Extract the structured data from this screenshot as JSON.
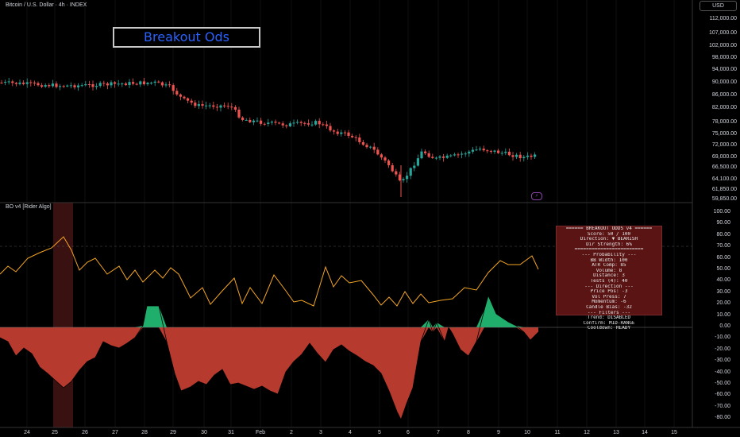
{
  "header": {
    "symbol": "Bitcoin / U.S. Dollar · 4h · INDEX",
    "currency_button": "USD",
    "overlay_title": "Breakout Ods"
  },
  "price_axis": [
    "112,000.00",
    "107,000.00",
    "102,000.00",
    "98,000.00",
    "94,000.00",
    "90,000.00",
    "86,000.00",
    "82,000.00",
    "78,000.00",
    "75,000.00",
    "72,000.00",
    "69,000.00",
    "66,500.00",
    "64,100.00",
    "61,850.00",
    "59,850.00"
  ],
  "indicator": {
    "label": "BO v4 [Rider Algo]",
    "axis": [
      "100.00",
      "90.00",
      "80.00",
      "70.00",
      "60.00",
      "50.00",
      "40.00",
      "30.00",
      "20.00",
      "10.00",
      "0.00",
      "-10.00",
      "-20.00",
      "-30.00",
      "-40.00",
      "-50.00",
      "-60.00",
      "-70.00",
      "-80.00"
    ],
    "info_panel": [
      "====== BREAKOUT ODDS v4 ======",
      "Score: 50 / 100",
      "Direction: ▼ BEARISH",
      "Dir Strength: 6%",
      "========================",
      "--- Probability ---",
      "BB Width: 100",
      "ATR Comp: 85",
      "Volume: 8",
      "Distance: 3",
      "Tests (4): 40",
      "--- Direction ---",
      "Price Pos: -3",
      "Vol Press: 7",
      "Momentum: -6",
      "Candle Bias: -32",
      "--- Filters ---",
      "Trend: DISABLED",
      "Confirm: MID-RANGE",
      "Cooldown: READY"
    ]
  },
  "time_axis": [
    "24",
    "25",
    "26",
    "27",
    "28",
    "29",
    "30",
    "31",
    "Feb",
    "2",
    "3",
    "4",
    "5",
    "6",
    "7",
    "8",
    "9",
    "10",
    "11",
    "12",
    "13",
    "14",
    "15"
  ],
  "colors": {
    "bull": "#26a69a",
    "bear": "#ef5350",
    "score_line": "#f5a623",
    "fill_red": "#b73a2e",
    "fill_green": "#1fae6c",
    "highlight": "#3a1111"
  }
}
